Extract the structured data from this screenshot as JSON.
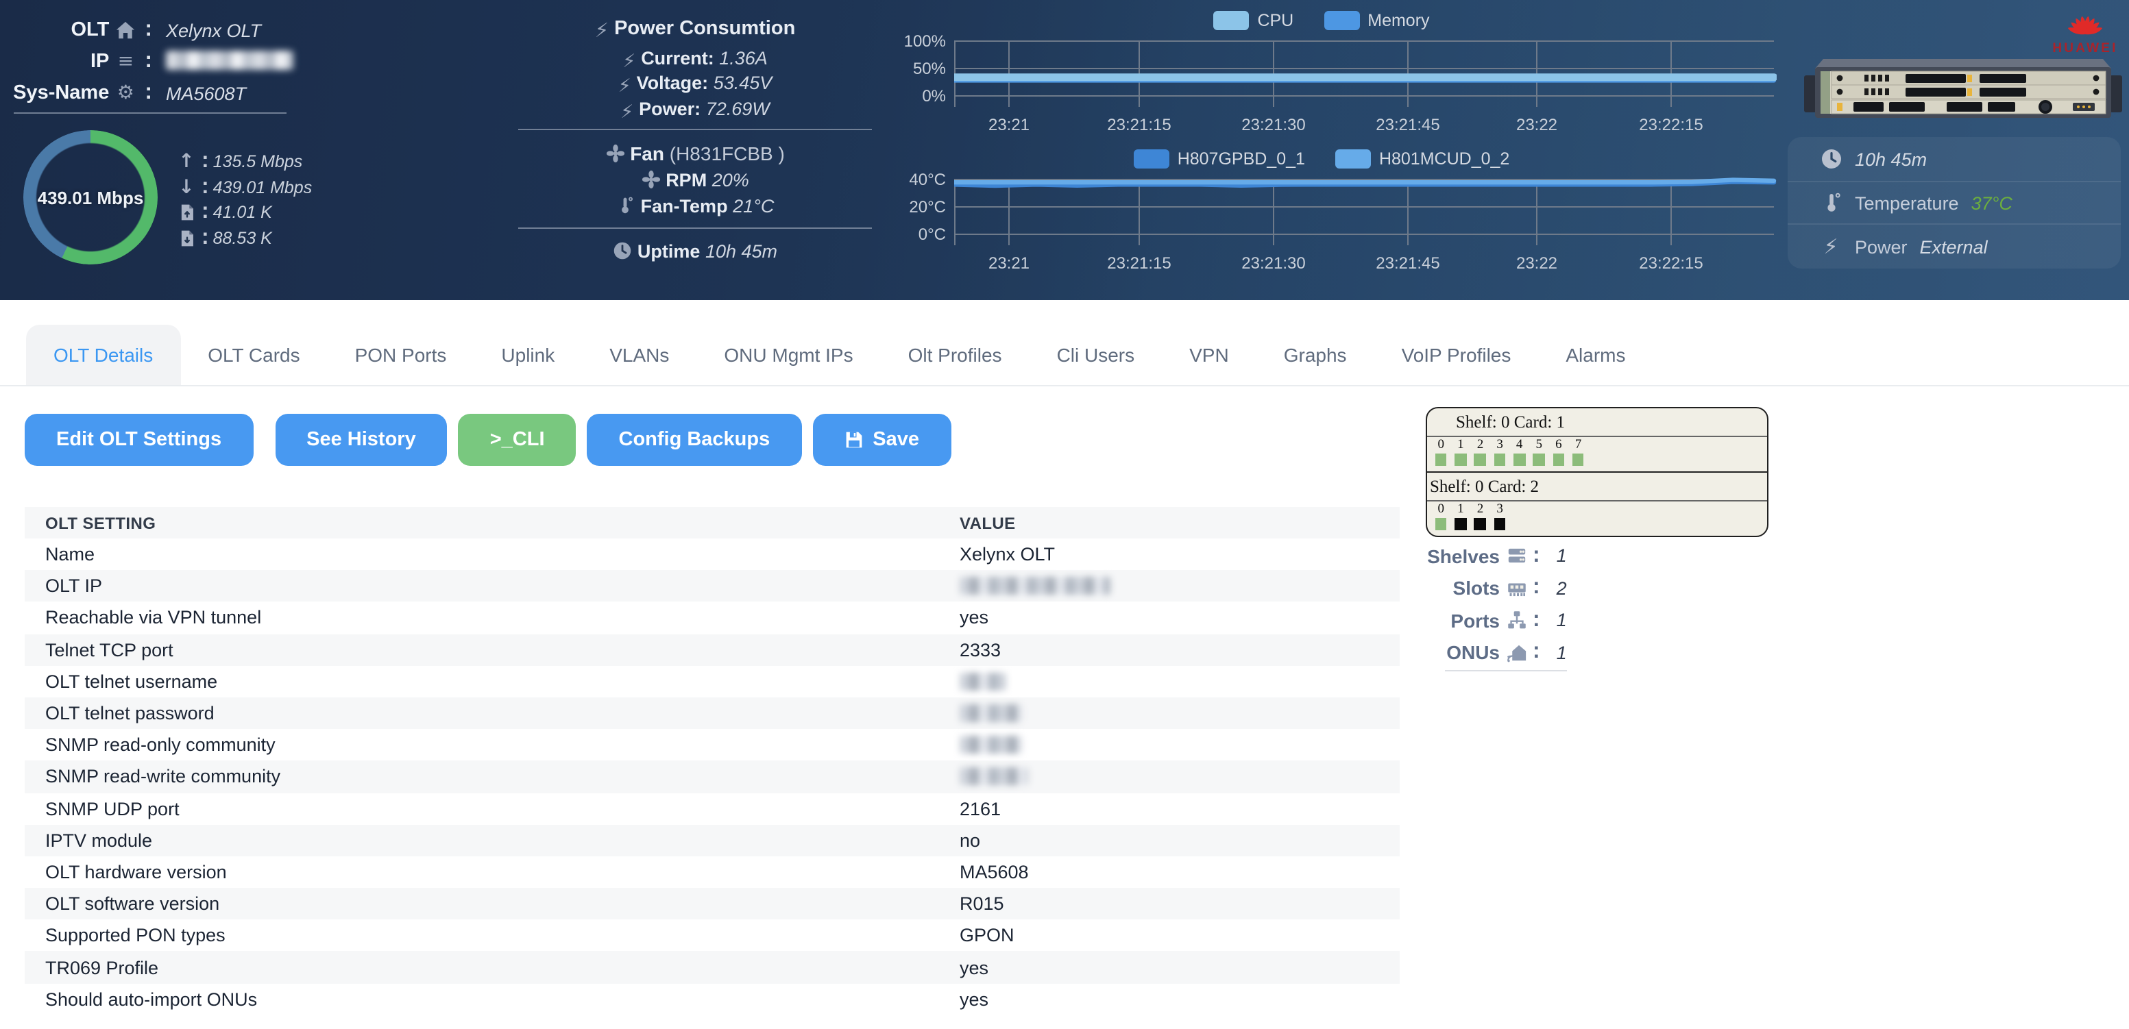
{
  "ui": {
    "colon": ":"
  },
  "header": {
    "olt_label": "OLT",
    "olt_value": "Xelynx OLT",
    "ip_label": "IP",
    "sys_label": "Sys-Name",
    "sys_value": "MA5608T",
    "gauge": {
      "value": "439.01 Mbps",
      "green_pct": 57,
      "green_color": "#53b96a",
      "blue_color": "#4a7aa8"
    },
    "traffic": {
      "up": "135.5 Mbps",
      "down": "439.01 Mbps",
      "files_up": "41.01 K",
      "files_down": "88.53 K"
    },
    "power": {
      "title": "Power Consumtion",
      "rows": [
        {
          "label": "Current:",
          "value": "1.36A"
        },
        {
          "label": "Voltage:",
          "value": "53.45V"
        },
        {
          "label": "Power:",
          "value": "72.69W"
        }
      ]
    },
    "fan": {
      "label": "Fan",
      "model": "(H831FCBB )",
      "rpm_label": "RPM",
      "rpm_value": "20%",
      "temp_label": "Fan-Temp",
      "temp_value": "21°C"
    },
    "uptime": {
      "label": "Uptime",
      "value": "10h 45m"
    },
    "brand": "HUAWEI",
    "device_panel": {
      "uptime": "10h 45m",
      "temp_label": "Temperature",
      "temp_value": "37°C",
      "temp_color": "#6cae3e",
      "power_label": "Power",
      "power_value": "External"
    }
  },
  "tabs": {
    "active": "OLT Details",
    "items": [
      "OLT Details",
      "OLT Cards",
      "PON Ports",
      "Uplink",
      "VLANs",
      "ONU Mgmt IPs",
      "Olt Profiles",
      "Cli Users",
      "VPN",
      "Graphs",
      "VoIP Profiles",
      "Alarms"
    ]
  },
  "toolbar": {
    "edit": "Edit OLT Settings",
    "history": "See History",
    "cli": ">_CLI",
    "backups": "Config Backups",
    "save": "Save"
  },
  "table": {
    "headers": [
      "OLT SETTING",
      "VALUE"
    ],
    "rows": [
      {
        "setting": "Name",
        "value": "Xelynx OLT",
        "masked": false
      },
      {
        "setting": "OLT IP",
        "value": "",
        "masked": true,
        "mask_width": 110
      },
      {
        "setting": "Reachable via VPN tunnel",
        "value": "yes",
        "masked": false
      },
      {
        "setting": "Telnet TCP port",
        "value": "2333",
        "masked": false
      },
      {
        "setting": "OLT telnet username",
        "value": "",
        "masked": true,
        "mask_width": 34
      },
      {
        "setting": "OLT telnet password",
        "value": "",
        "masked": true,
        "mask_width": 46
      },
      {
        "setting": "SNMP read-only community",
        "value": "",
        "masked": true,
        "mask_width": 46
      },
      {
        "setting": "SNMP read-write community",
        "value": "",
        "masked": true,
        "mask_width": 50
      },
      {
        "setting": "SNMP UDP port",
        "value": "2161",
        "masked": false
      },
      {
        "setting": "IPTV module",
        "value": "no",
        "masked": false
      },
      {
        "setting": "OLT hardware version",
        "value": "MA5608",
        "masked": false
      },
      {
        "setting": "OLT software version",
        "value": "R015",
        "masked": false
      },
      {
        "setting": "Supported PON types",
        "value": "GPON",
        "masked": false
      },
      {
        "setting": "TR069 Profile",
        "value": "yes",
        "masked": false
      },
      {
        "setting": "Should auto-import ONUs",
        "value": "yes",
        "masked": false
      }
    ]
  },
  "shelf": {
    "cards": [
      {
        "title": "Shelf: 0 Card: 1",
        "title_indent": 21,
        "ports": [
          {
            "n": "0",
            "state": "up"
          },
          {
            "n": "1",
            "state": "up"
          },
          {
            "n": "2",
            "state": "up"
          },
          {
            "n": "3",
            "state": "up"
          },
          {
            "n": "4",
            "state": "up"
          },
          {
            "n": "5",
            "state": "up"
          },
          {
            "n": "6",
            "state": "up"
          },
          {
            "n": "7",
            "state": "up"
          }
        ]
      },
      {
        "title": "Shelf: 0 Card: 2",
        "title_indent": 2,
        "ports": [
          {
            "n": "0",
            "state": "up"
          },
          {
            "n": "1",
            "state": "down"
          },
          {
            "n": "2",
            "state": "down"
          },
          {
            "n": "3",
            "state": "down"
          }
        ]
      }
    ]
  },
  "stats": {
    "items": [
      {
        "label": "Shelves",
        "icon": "server-icon",
        "value": "1"
      },
      {
        "label": "Slots",
        "icon": "memory-icon",
        "value": "2"
      },
      {
        "label": "Ports",
        "icon": "network-icon",
        "value": "1"
      },
      {
        "label": "ONUs",
        "icon": "onu-icon",
        "value": "1"
      }
    ]
  },
  "chart_data": [
    {
      "type": "line",
      "title": "CPU / Memory utilization",
      "legend": [
        {
          "name": "CPU",
          "color": "#8cc4e8"
        },
        {
          "name": "Memory",
          "color": "#4d97e3"
        }
      ],
      "ylim": [
        0,
        100
      ],
      "yticks": [
        {
          "label": "100%",
          "value": 100
        },
        {
          "label": "50%",
          "value": 50
        },
        {
          "label": "0%",
          "value": 0
        }
      ],
      "xticks": [
        "23:21",
        "23:21:15",
        "23:21:30",
        "23:21:45",
        "23:22",
        "23:22:15"
      ],
      "grid": true,
      "legend_position": "top",
      "series": [
        {
          "name": "Memory",
          "color": "#4d97e3",
          "width": 3,
          "values": [
            28,
            28,
            28,
            28,
            28,
            28,
            28,
            28,
            28,
            28,
            28,
            28
          ]
        },
        {
          "name": "CPU",
          "color": "#8cc4e8",
          "width": 5.5,
          "values": [
            34,
            34,
            34,
            34,
            34,
            34,
            34,
            34,
            34,
            34,
            34,
            34
          ]
        }
      ]
    },
    {
      "type": "line",
      "title": "Card temperatures",
      "legend": [
        {
          "name": "H807GPBD_0_1",
          "color": "#3e86d6"
        },
        {
          "name": "H801MCUD_0_2",
          "color": "#66abe9"
        }
      ],
      "ylim": [
        0,
        40
      ],
      "yticks": [
        {
          "label": "40°C",
          "value": 40
        },
        {
          "label": "20°C",
          "value": 20
        },
        {
          "label": "0°C",
          "value": 0
        }
      ],
      "xticks": [
        "23:21",
        "23:21:15",
        "23:21:30",
        "23:21:45",
        "23:22",
        "23:22:15"
      ],
      "grid": true,
      "legend_position": "top",
      "series": [
        {
          "name": "H807GPBD_0_1",
          "color": "#3e86d6",
          "width": 3.2,
          "values": [
            36.3,
            35.5,
            36.3,
            35.6,
            36.3,
            36.3,
            36.3,
            35.6,
            36.2,
            36.3,
            36.3,
            36.3,
            36.3,
            36.3,
            36.3,
            36.3,
            36.3,
            36.3,
            36.7,
            38.3,
            37.9
          ]
        },
        {
          "name": "H801MCUD_0_2",
          "color": "#66abe9",
          "width": 3.2,
          "values": [
            37.9,
            37.9,
            37.9,
            37.9,
            37.9,
            37.9,
            37.9,
            37.9,
            37.9,
            37.9,
            37.9,
            37.9,
            37.9,
            37.9,
            37.9,
            37.9,
            37.9,
            37.9,
            38.2,
            39.7,
            39.1
          ]
        }
      ]
    }
  ]
}
